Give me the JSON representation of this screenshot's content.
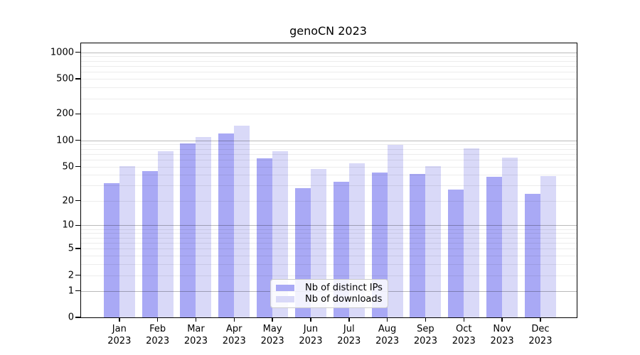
{
  "chart_data": {
    "type": "bar",
    "title": "genoCN 2023",
    "categories": [
      "Jan",
      "Feb",
      "Mar",
      "Apr",
      "May",
      "Jun",
      "Jul",
      "Aug",
      "Sep",
      "Oct",
      "Nov",
      "Dec"
    ],
    "x_year_label": "2023",
    "series": [
      {
        "name": "Nb of distinct IPs",
        "color": "#a9a9f5",
        "values": [
          32,
          44,
          92,
          119,
          62,
          28,
          33,
          43,
          41,
          27,
          38,
          24
        ]
      },
      {
        "name": "Nb of downloads",
        "color": "#d9d9f8",
        "values": [
          51,
          75,
          110,
          146,
          75,
          47,
          55,
          88,
          51,
          81,
          63,
          39
        ]
      }
    ],
    "yscale": "log1p",
    "yticks": [
      0,
      1,
      2,
      5,
      10,
      20,
      50,
      100,
      200,
      500,
      1000
    ],
    "ylim": [
      0,
      1265
    ],
    "gridlines": {
      "major": [
        1,
        10,
        100,
        1000
      ],
      "minor": [
        2,
        3,
        4,
        5,
        6,
        7,
        8,
        9,
        20,
        30,
        40,
        50,
        60,
        70,
        80,
        90,
        200,
        300,
        400,
        500,
        600,
        700,
        800,
        900
      ]
    },
    "grid": "horizontal major+minor, drawn over bars",
    "legend_position": "lower center"
  }
}
